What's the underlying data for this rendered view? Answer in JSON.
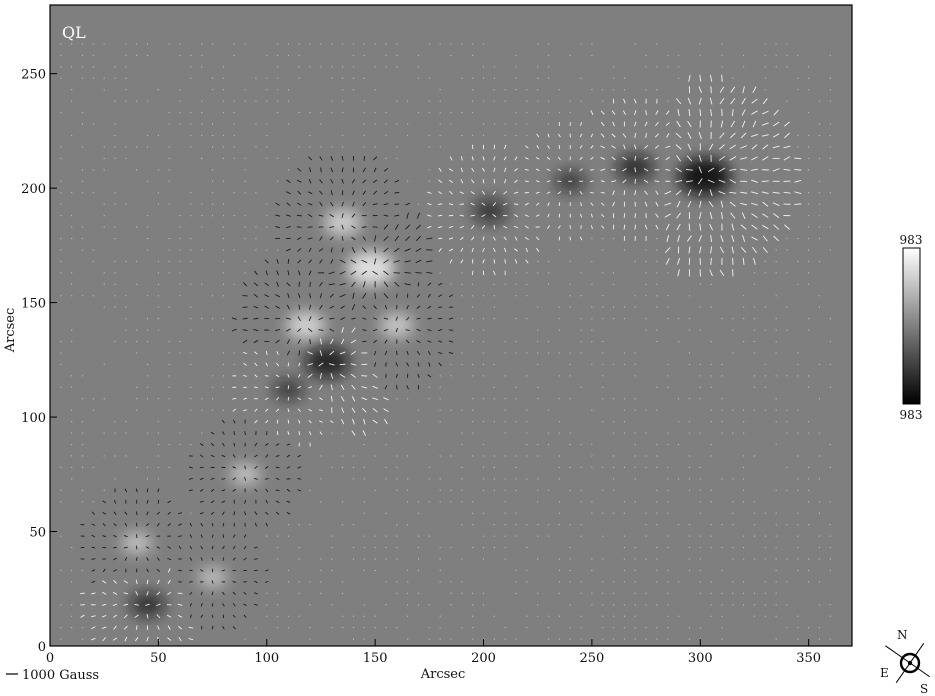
{
  "chart_data": {
    "type": "heatmap",
    "title": "",
    "panel_label": "QL",
    "xlabel": "Arcsec",
    "ylabel": "Arcsec",
    "xlim": [
      0,
      370
    ],
    "ylim": [
      0,
      280
    ],
    "x_ticks": [
      0,
      50,
      100,
      150,
      200,
      250,
      300,
      350
    ],
    "y_ticks": [
      0,
      50,
      100,
      150,
      200,
      250
    ],
    "grid": false,
    "colorbar": {
      "max_label": "983",
      "min_label": "983",
      "position": "right"
    },
    "scale_legend": "1000 Gauss",
    "orientation_labels": [
      "N",
      "E",
      "S"
    ],
    "colors": {
      "background": "#7f7f7f",
      "positive": "#f2f2f2",
      "negative": "#0d0d0d",
      "frame": "#000000"
    },
    "features": [
      {
        "x": 302,
        "y": 205,
        "polarity": "negative",
        "strength": 1.0
      },
      {
        "x": 270,
        "y": 209,
        "polarity": "negative",
        "strength": 0.55
      },
      {
        "x": 240,
        "y": 203,
        "polarity": "negative",
        "strength": 0.35
      },
      {
        "x": 203,
        "y": 190,
        "polarity": "negative",
        "strength": 0.45
      },
      {
        "x": 128,
        "y": 124,
        "polarity": "negative",
        "strength": 0.75
      },
      {
        "x": 110,
        "y": 112,
        "polarity": "negative",
        "strength": 0.35
      },
      {
        "x": 45,
        "y": 18,
        "polarity": "negative",
        "strength": 0.5
      },
      {
        "x": 148,
        "y": 165,
        "polarity": "positive",
        "strength": 0.85
      },
      {
        "x": 135,
        "y": 185,
        "polarity": "positive",
        "strength": 0.55
      },
      {
        "x": 118,
        "y": 140,
        "polarity": "positive",
        "strength": 0.6
      },
      {
        "x": 160,
        "y": 140,
        "polarity": "positive",
        "strength": 0.45
      },
      {
        "x": 90,
        "y": 75,
        "polarity": "positive",
        "strength": 0.35
      },
      {
        "x": 40,
        "y": 45,
        "polarity": "positive",
        "strength": 0.35
      },
      {
        "x": 75,
        "y": 30,
        "polarity": "positive",
        "strength": 0.3
      }
    ]
  }
}
